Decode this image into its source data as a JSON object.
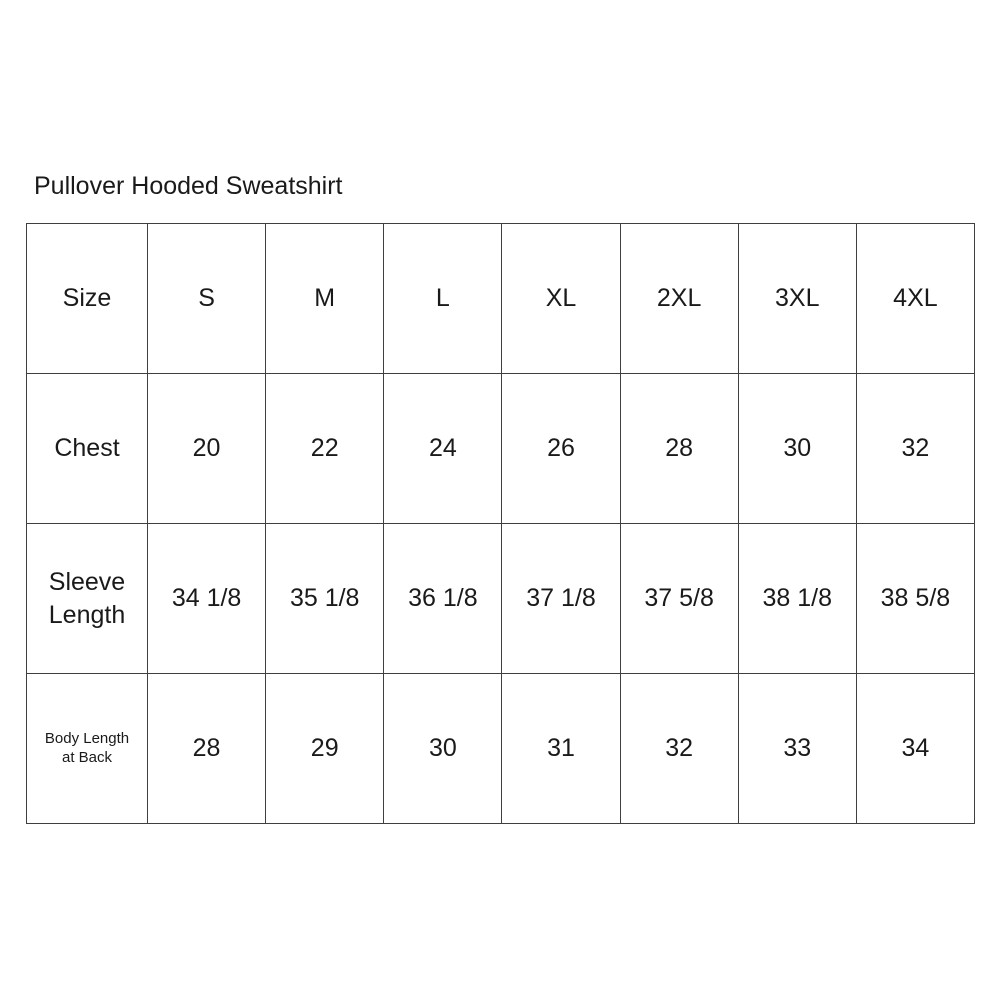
{
  "title": "Pullover Hooded Sweatshirt",
  "size_chart": {
    "header": [
      "Size",
      "S",
      "M",
      "L",
      "XL",
      "2XL",
      "3XL",
      "4XL"
    ],
    "rows": [
      {
        "label": "Chest",
        "values": [
          "20",
          "22",
          "24",
          "26",
          "28",
          "30",
          "32"
        ]
      },
      {
        "label": "Sleeve Length",
        "values": [
          "34 1/8",
          "35 1/8",
          "36 1/8",
          "37 1/8",
          "37 5/8",
          "38 1/8",
          "38 5/8"
        ]
      },
      {
        "label": "Body Length at Back",
        "values": [
          "28",
          "29",
          "30",
          "31",
          "32",
          "33",
          "34"
        ]
      }
    ]
  },
  "colors": {
    "background": "#ffffff",
    "border": "#3f3f3f",
    "text": "#1a1a1a"
  }
}
